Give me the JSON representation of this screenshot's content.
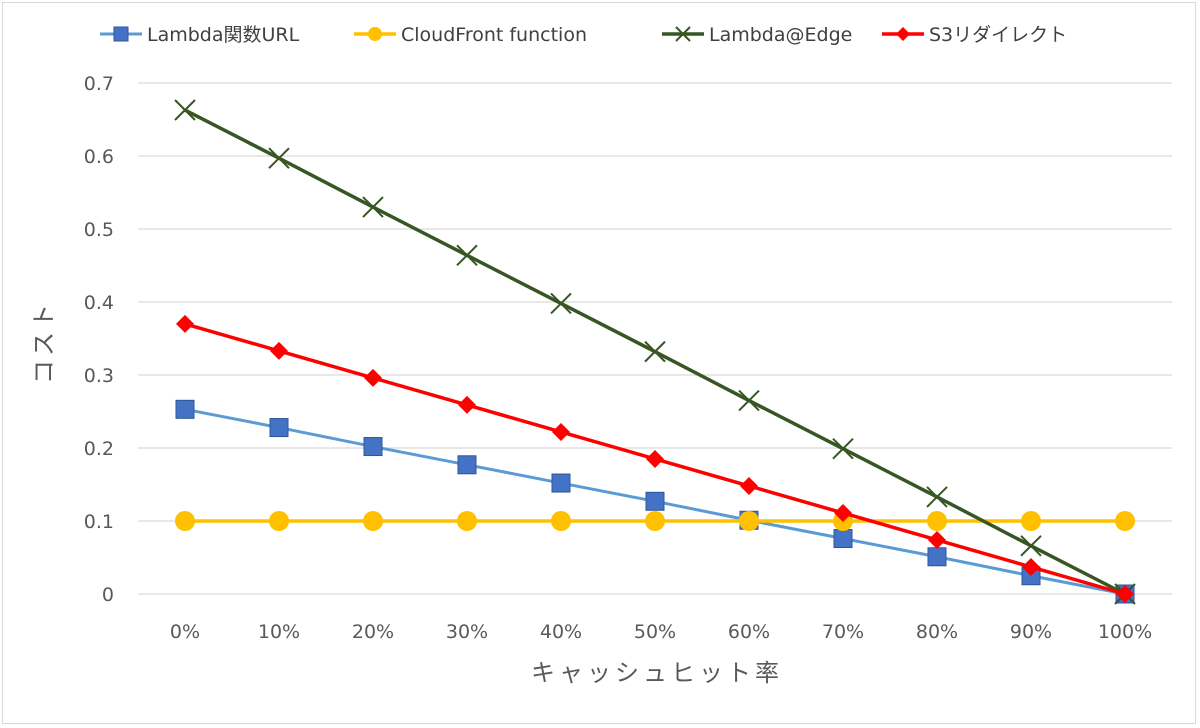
{
  "chart_data": {
    "type": "line",
    "categories": [
      "0%",
      "10%",
      "20%",
      "30%",
      "40%",
      "50%",
      "60%",
      "70%",
      "80%",
      "90%",
      "100%"
    ],
    "xlabel": "キャッシュヒット率",
    "ylabel": "コスト",
    "ylim": [
      0,
      0.7
    ],
    "yticks": [
      0,
      0.1,
      0.2,
      0.3,
      0.4,
      0.5,
      0.6,
      0.7
    ],
    "ytick_labels": [
      "0",
      "0.1",
      "0.2",
      "0.3",
      "0.4",
      "0.5",
      "0.6",
      "0.7"
    ],
    "grid": true,
    "legend_position": "top",
    "series": [
      {
        "name": "Lambda関数URL",
        "color": "#5b9bd5",
        "marker_color": "#4472c4",
        "marker": "square",
        "values": [
          0.253,
          0.228,
          0.202,
          0.177,
          0.152,
          0.127,
          0.101,
          0.076,
          0.051,
          0.025,
          0
        ]
      },
      {
        "name": "CloudFront function",
        "color": "#ffc000",
        "marker_color": "#ffc000",
        "marker": "circle",
        "values": [
          0.1,
          0.1,
          0.1,
          0.1,
          0.1,
          0.1,
          0.1,
          0.1,
          0.1,
          0.1,
          0.1
        ]
      },
      {
        "name": "Lambda@Edge",
        "color": "#375623",
        "marker_color": "#375623",
        "marker": "x",
        "values": [
          0.663,
          0.597,
          0.53,
          0.464,
          0.398,
          0.332,
          0.265,
          0.199,
          0.133,
          0.066,
          0
        ]
      },
      {
        "name": "S3リダイレクト",
        "color": "#ff0000",
        "marker_color": "#ff0000",
        "marker": "diamond",
        "values": [
          0.37,
          0.333,
          0.296,
          0.259,
          0.222,
          0.185,
          0.148,
          0.111,
          0.074,
          0.037,
          0
        ]
      }
    ]
  }
}
